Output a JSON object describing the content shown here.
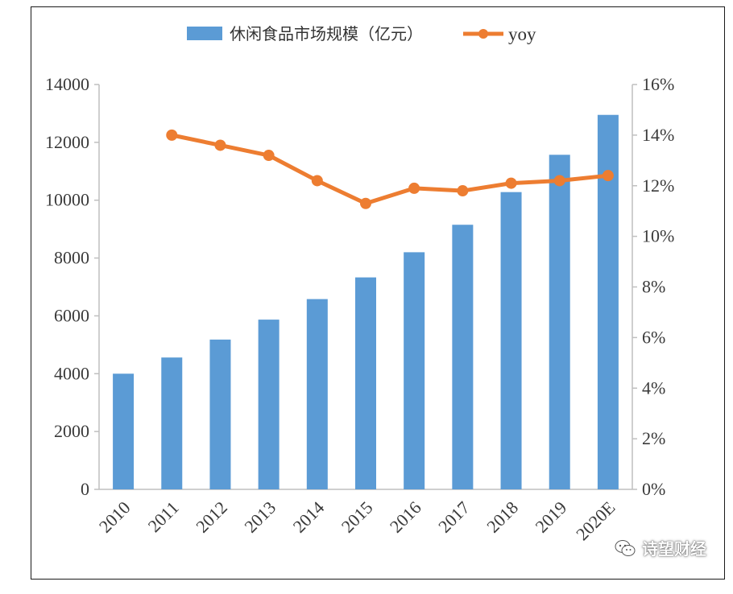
{
  "chart_data": {
    "type": "bar+line",
    "categories": [
      "2010",
      "2011",
      "2012",
      "2013",
      "2014",
      "2015",
      "2016",
      "2017",
      "2018",
      "2019",
      "2020E"
    ],
    "series": [
      {
        "name": "休闲食品市场规模（亿元）",
        "type": "bar",
        "axis": "left",
        "color": "#5b9bd5",
        "values": [
          4000,
          4560,
          5180,
          5870,
          6580,
          7330,
          8200,
          9150,
          10280,
          11570,
          12950
        ]
      },
      {
        "name": "yoy",
        "type": "line",
        "axis": "right",
        "color": "#ed7d31",
        "values": [
          null,
          0.14,
          0.136,
          0.132,
          0.122,
          0.113,
          0.119,
          0.118,
          0.121,
          0.122,
          0.124
        ]
      }
    ],
    "y_left": {
      "min": 0,
      "max": 14000,
      "ticks": [
        "0",
        "2000",
        "4000",
        "6000",
        "8000",
        "10000",
        "12000",
        "14000"
      ]
    },
    "y_right": {
      "min": 0,
      "max": 0.16,
      "ticks": [
        "0%",
        "2%",
        "4%",
        "6%",
        "8%",
        "10%",
        "12%",
        "14%",
        "16%"
      ]
    },
    "legend": "top",
    "grid": false
  },
  "legend": {
    "bar_label": "休闲食品市场规模（亿元）",
    "line_label": "yoy"
  },
  "watermark": {
    "text": "诗望财经",
    "icon": "wechat-icon"
  }
}
